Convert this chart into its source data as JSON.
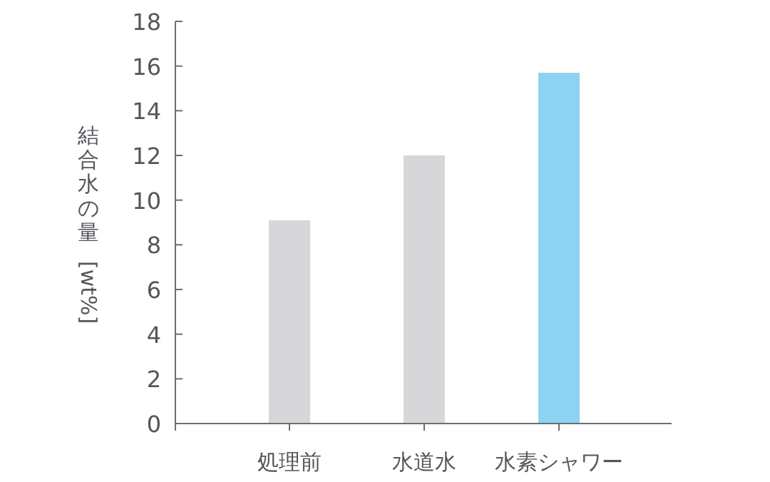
{
  "chart_data": {
    "type": "bar",
    "ylabel": "結合水の量 [wt%]",
    "categories": [
      "処理前",
      "水道水",
      "水素シャワー"
    ],
    "values": [
      9.1,
      12.0,
      15.7
    ],
    "colors": [
      "#d7d6d8",
      "#d7d6d8",
      "#8ed2f1"
    ],
    "ylim": [
      0,
      18
    ],
    "yticks": [
      0,
      2,
      4,
      6,
      8,
      10,
      12,
      14,
      16,
      18
    ],
    "grid": false
  }
}
